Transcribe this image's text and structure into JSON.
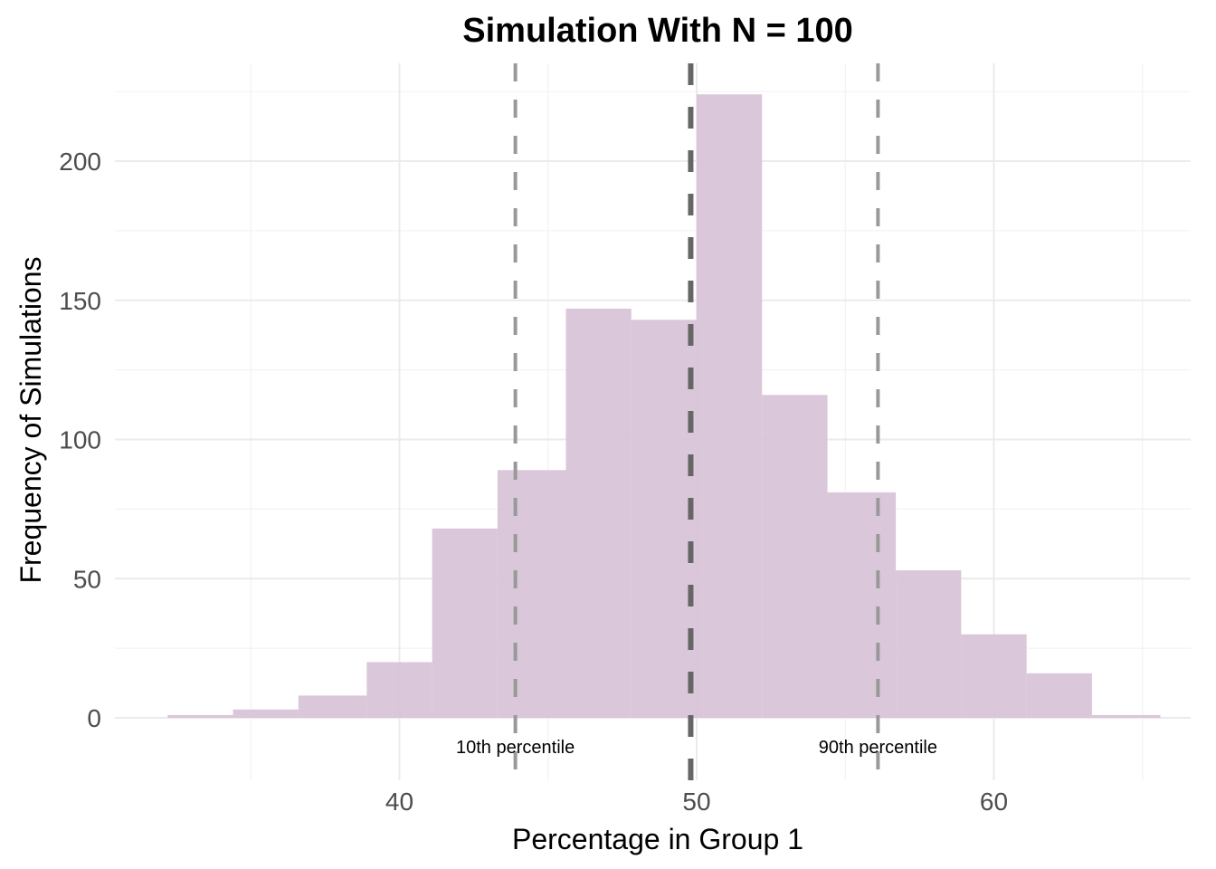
{
  "chart_data": {
    "type": "bar",
    "subtype": "histogram",
    "title": "Simulation With N = 100",
    "xlabel": "Percentage in Group 1",
    "ylabel": "Frequency of Simulations",
    "xlim": [
      30.4,
      66.6
    ],
    "ylim": [
      -22,
      233
    ],
    "x_ticks": [
      40,
      50,
      60
    ],
    "x_tick_labels": [
      "40",
      "50",
      "60"
    ],
    "x_minor_gridlines": [
      35,
      45,
      55,
      65
    ],
    "y_ticks": [
      0,
      50,
      100,
      150,
      200
    ],
    "y_tick_labels": [
      "0",
      "50",
      "100",
      "150",
      "200"
    ],
    "y_minor_gridlines": [
      25,
      75,
      125,
      175,
      225
    ],
    "grid": true,
    "bin_edges": [
      32.2,
      34.4,
      36.6,
      38.9,
      41.1,
      43.3,
      45.6,
      47.8,
      50.0,
      52.2,
      54.4,
      56.7,
      58.9,
      61.1,
      63.3,
      65.6
    ],
    "values": [
      1,
      3,
      8,
      20,
      68,
      89,
      147,
      143,
      224,
      116,
      81,
      53,
      30,
      16,
      1
    ],
    "bar_color": "#d8c4d7",
    "vlines": [
      {
        "name": "10th percentile",
        "x": 43.9,
        "color": "#999999",
        "label": "10th percentile"
      },
      {
        "name": "median",
        "x": 49.8,
        "color": "#666666",
        "label": ""
      },
      {
        "name": "90th percentile",
        "x": 56.1,
        "color": "#999999",
        "label": "90th percentile"
      }
    ]
  }
}
